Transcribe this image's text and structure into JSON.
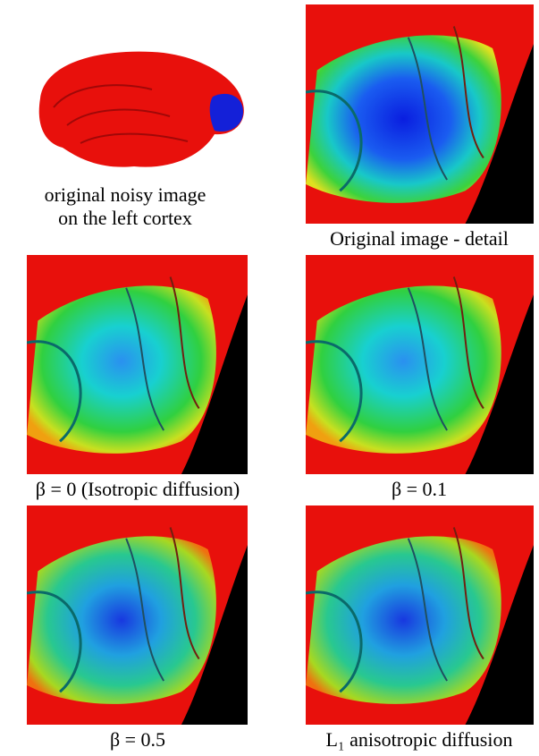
{
  "figure": {
    "panels": [
      {
        "caption_lines": [
          "original noisy image",
          "on the left cortex"
        ]
      },
      {
        "caption": "Original image - detail"
      },
      {
        "caption": "β = 0 (Isotropic diffusion)"
      },
      {
        "caption": "β = 0.1"
      },
      {
        "caption": "β = 0.5"
      },
      {
        "caption": "L₁ anisotropic diffusion"
      }
    ]
  }
}
